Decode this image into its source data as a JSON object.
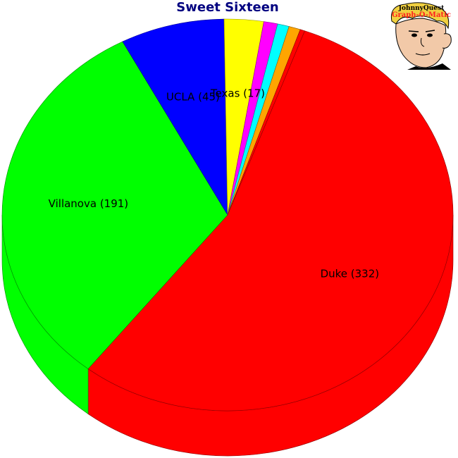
{
  "chart_data": {
    "type": "pie",
    "title": "Sweet Sixteen",
    "style": "3d",
    "slices": [
      {
        "label": "Duke",
        "value": 332,
        "color": "#ff0000",
        "show_label": true
      },
      {
        "label": "Villanova",
        "value": 191,
        "color": "#00ff00",
        "show_label": true
      },
      {
        "label": "UCLA",
        "value": 45,
        "color": "#0000ff",
        "show_label": true
      },
      {
        "label": "Texas",
        "value": 17,
        "color": "#ffff00",
        "show_label": true
      },
      {
        "label": "",
        "value": 6,
        "color": "#ff00ff",
        "show_label": false
      },
      {
        "label": "",
        "value": 5,
        "color": "#00ffff",
        "show_label": false
      },
      {
        "label": "",
        "value": 5,
        "color": "#ffa500",
        "show_label": false
      },
      {
        "label": "",
        "value": 2,
        "color": "#ff0000",
        "show_label": false
      }
    ]
  },
  "logo": {
    "line1": "JohnnyQuest",
    "line2": "Graph-O-Matic",
    "icon": "cartoon-boy-face"
  }
}
